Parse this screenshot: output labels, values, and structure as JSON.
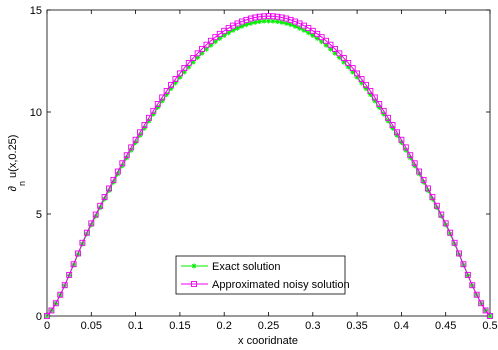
{
  "chart_data": {
    "type": "line",
    "xlabel": "x cooridnate",
    "ylabel": "∂n u(x,0.25)",
    "ylabel_main": "∂",
    "ylabel_sub": "n",
    "ylabel_rest": " u(x,0.25)",
    "xlim": [
      0,
      0.5
    ],
    "ylim": [
      0,
      15
    ],
    "x_ticks": [
      0,
      0.05,
      0.1,
      0.15,
      0.2,
      0.25,
      0.3,
      0.35,
      0.4,
      0.45,
      0.5
    ],
    "x_tick_labels": [
      "0",
      "0.05",
      "0.1",
      "0.15",
      "0.2",
      "0.25",
      "0.3",
      "0.35",
      "0.4",
      "0.45",
      "0.5"
    ],
    "y_ticks": [
      0,
      5,
      10,
      15
    ],
    "y_tick_labels": [
      "0",
      "5",
      "10",
      "15"
    ],
    "grid": false,
    "legend_position": "bottom-center",
    "series": [
      {
        "name": "Exact solution",
        "color": "#00ee00",
        "marker": "asterisk",
        "x": [
          0,
          0.05,
          0.1,
          0.15,
          0.2,
          0.25,
          0.3,
          0.35,
          0.4,
          0.45,
          0.5
        ],
        "y": [
          0,
          4.47,
          8.5,
          11.7,
          13.75,
          14.46,
          13.75,
          11.7,
          8.5,
          4.47,
          0
        ]
      },
      {
        "name": "Approximated noisy solution",
        "color": "#ee00ee",
        "marker": "square",
        "x": [
          0,
          0.05,
          0.1,
          0.15,
          0.2,
          0.25,
          0.3,
          0.35,
          0.4,
          0.45,
          0.5
        ],
        "y": [
          0,
          4.54,
          8.64,
          11.89,
          13.98,
          14.7,
          13.98,
          11.89,
          8.64,
          4.54,
          0
        ]
      }
    ]
  }
}
